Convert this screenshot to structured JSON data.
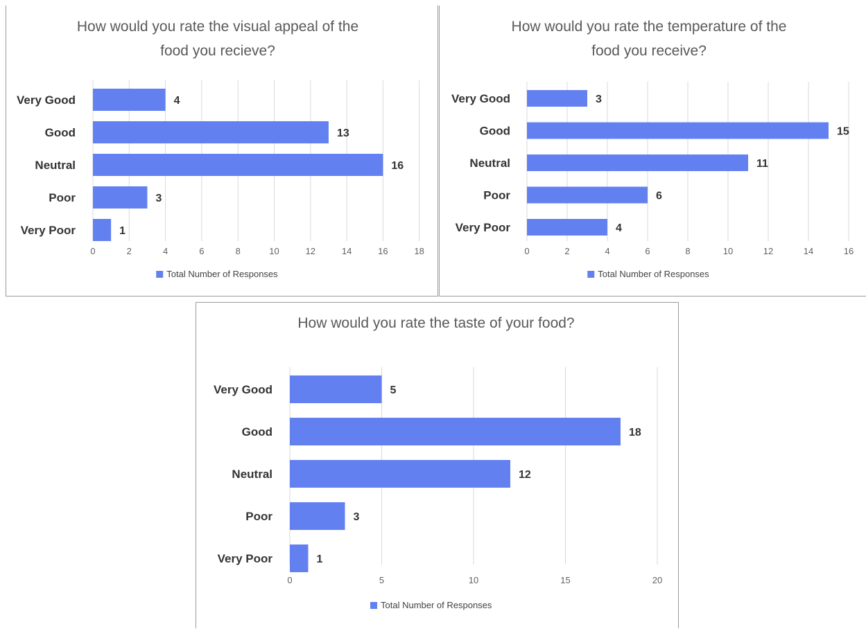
{
  "chart_data": [
    {
      "type": "bar",
      "orientation": "horizontal",
      "title": "How would you rate the visual appeal of the food you recieve?",
      "title_lines": [
        "How would you rate the visual appeal of the",
        "food you recieve?"
      ],
      "categories": [
        "Very Good",
        "Good",
        "Neutral",
        "Poor",
        "Very Poor"
      ],
      "series": [
        {
          "name": "Total Number of Responses",
          "values": [
            4,
            13,
            16,
            3,
            1
          ]
        }
      ],
      "xlim": [
        0,
        18
      ],
      "xticks": [
        0,
        2,
        4,
        6,
        8,
        10,
        12,
        14,
        16,
        18
      ],
      "grid": true,
      "legend": "bottom",
      "color": "#6380f0"
    },
    {
      "type": "bar",
      "orientation": "horizontal",
      "title": "How would you rate the temperature of the food you receive?",
      "title_lines": [
        "How would you rate the temperature of the",
        "food you receive?"
      ],
      "categories": [
        "Very Good",
        "Good",
        "Neutral",
        "Poor",
        "Very Poor"
      ],
      "series": [
        {
          "name": "Total Number of Responses",
          "values": [
            3,
            15,
            11,
            6,
            4
          ]
        }
      ],
      "xlim": [
        0,
        16
      ],
      "xticks": [
        0,
        2,
        4,
        6,
        8,
        10,
        12,
        14,
        16
      ],
      "grid": true,
      "legend": "bottom",
      "color": "#6380f0"
    },
    {
      "type": "bar",
      "orientation": "horizontal",
      "title": "How would you rate the taste of your food?",
      "title_lines": [
        "How would you rate the taste of your food?"
      ],
      "categories": [
        "Very Good",
        "Good",
        "Neutral",
        "Poor",
        "Very Poor"
      ],
      "series": [
        {
          "name": "Total Number of Responses",
          "values": [
            5,
            18,
            12,
            3,
            1
          ]
        }
      ],
      "xlim": [
        0,
        20
      ],
      "xticks": [
        0,
        5,
        10,
        15,
        20
      ],
      "grid": true,
      "legend": "bottom",
      "color": "#6380f0"
    }
  ]
}
